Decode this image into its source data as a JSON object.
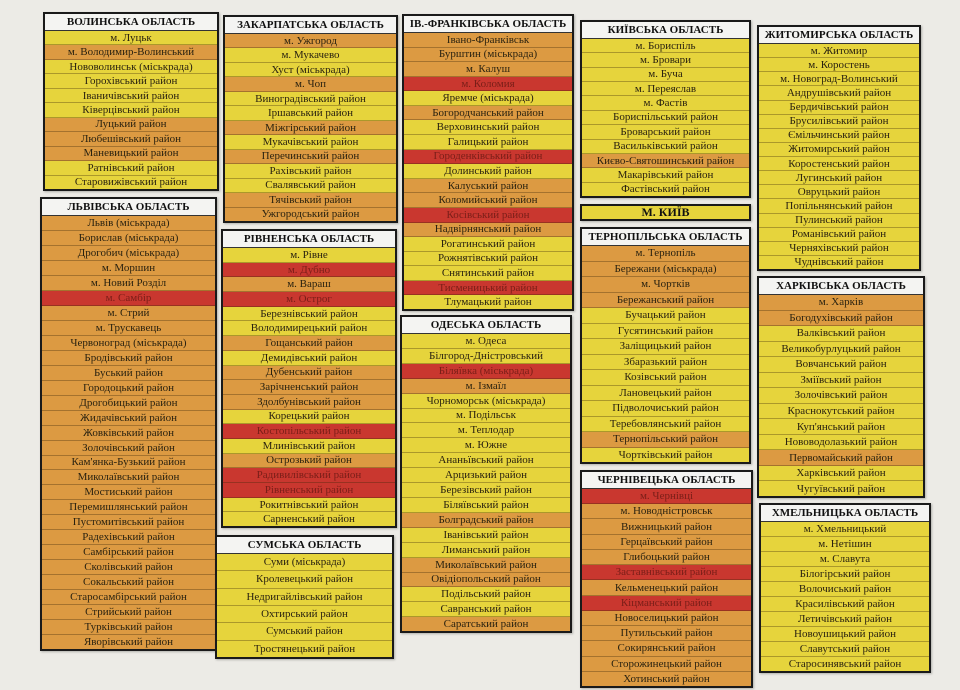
{
  "colors": {
    "yellow": "#e6d43c",
    "orange": "#dc9a42",
    "red": "#c9372f"
  },
  "regions": [
    {
      "title": "ВОЛИНСЬКА ОБЛАСТЬ",
      "items": [
        {
          "name": "м. Луцьк",
          "status": "yellow"
        },
        {
          "name": "м. Володимир-Волинський",
          "status": "orange"
        },
        {
          "name": "Нововолинськ (міськрада)",
          "status": "yellow"
        },
        {
          "name": "Горохівський район",
          "status": "yellow"
        },
        {
          "name": "Іваничівський район",
          "status": "yellow"
        },
        {
          "name": "Ківерцівський район",
          "status": "yellow"
        },
        {
          "name": "Луцький район",
          "status": "orange"
        },
        {
          "name": "Любешівський район",
          "status": "orange"
        },
        {
          "name": "Маневицький район",
          "status": "orange"
        },
        {
          "name": "Ратнівський район",
          "status": "yellow"
        },
        {
          "name": "Старовижівський район",
          "status": "yellow"
        }
      ]
    },
    {
      "title": "ЛЬВІВСЬКА ОБЛАСТЬ",
      "items": [
        {
          "name": "Львів (міськрада)",
          "status": "orange"
        },
        {
          "name": "Борислав (міськрада)",
          "status": "orange"
        },
        {
          "name": "Дрогобич (міськрада)",
          "status": "orange"
        },
        {
          "name": "м. Моршин",
          "status": "orange"
        },
        {
          "name": "м. Новий Розділ",
          "status": "orange"
        },
        {
          "name": "м. Самбір",
          "status": "red"
        },
        {
          "name": "м. Стрий",
          "status": "orange"
        },
        {
          "name": "м. Трускавець",
          "status": "orange"
        },
        {
          "name": "Червоноград (міськрада)",
          "status": "orange"
        },
        {
          "name": "Бродівський район",
          "status": "orange"
        },
        {
          "name": "Буський район",
          "status": "orange"
        },
        {
          "name": "Городоцький район",
          "status": "orange"
        },
        {
          "name": "Дрогобицький район",
          "status": "orange"
        },
        {
          "name": "Жидачівський район",
          "status": "orange"
        },
        {
          "name": "Жовківський район",
          "status": "orange"
        },
        {
          "name": "Золочівський район",
          "status": "orange"
        },
        {
          "name": "Кам'янка-Бузький район",
          "status": "orange"
        },
        {
          "name": "Миколаївський район",
          "status": "orange"
        },
        {
          "name": "Мостиський район",
          "status": "orange"
        },
        {
          "name": "Перемишлянський район",
          "status": "orange"
        },
        {
          "name": "Пустомитівський район",
          "status": "orange"
        },
        {
          "name": "Радехівський район",
          "status": "orange"
        },
        {
          "name": "Самбірський район",
          "status": "orange"
        },
        {
          "name": "Сколівський район",
          "status": "orange"
        },
        {
          "name": "Сокальський район",
          "status": "orange"
        },
        {
          "name": "Старосамбірський район",
          "status": "orange"
        },
        {
          "name": "Стрийський район",
          "status": "orange"
        },
        {
          "name": "Турківський район",
          "status": "orange"
        },
        {
          "name": "Яворівський район",
          "status": "orange"
        }
      ]
    },
    {
      "title": "ЗАКАРПАТСЬКА ОБЛАСТЬ",
      "items": [
        {
          "name": "м. Ужгород",
          "status": "orange"
        },
        {
          "name": "м. Мукачево",
          "status": "yellow"
        },
        {
          "name": "Хуст (міськрада)",
          "status": "yellow"
        },
        {
          "name": "м. Чоп",
          "status": "orange"
        },
        {
          "name": "Виноградівський район",
          "status": "yellow"
        },
        {
          "name": "Іршавський район",
          "status": "yellow"
        },
        {
          "name": "Міжгірський район",
          "status": "orange"
        },
        {
          "name": "Мукачівський район",
          "status": "yellow"
        },
        {
          "name": "Перечинський район",
          "status": "orange"
        },
        {
          "name": "Рахівський район",
          "status": "yellow"
        },
        {
          "name": "Свалявський район",
          "status": "yellow"
        },
        {
          "name": "Тячівський район",
          "status": "orange"
        },
        {
          "name": "Ужгородський район",
          "status": "orange"
        }
      ]
    },
    {
      "title": "РІВНЕНСЬКА ОБЛАСТЬ",
      "items": [
        {
          "name": "м. Рівне",
          "status": "yellow"
        },
        {
          "name": "м. Дубно",
          "status": "red"
        },
        {
          "name": "м. Вараш",
          "status": "orange"
        },
        {
          "name": "м. Острог",
          "status": "red"
        },
        {
          "name": "Березнівський район",
          "status": "yellow"
        },
        {
          "name": "Володимирецький район",
          "status": "yellow"
        },
        {
          "name": "Гощанський район",
          "status": "orange"
        },
        {
          "name": "Демидівський район",
          "status": "yellow"
        },
        {
          "name": "Дубенський район",
          "status": "orange"
        },
        {
          "name": "Зарічненський район",
          "status": "orange"
        },
        {
          "name": "Здолбунівський район",
          "status": "orange"
        },
        {
          "name": "Корецький район",
          "status": "yellow"
        },
        {
          "name": "Костопільський район",
          "status": "red"
        },
        {
          "name": "Млинівський район",
          "status": "yellow"
        },
        {
          "name": "Острозький район",
          "status": "orange"
        },
        {
          "name": "Радивилівський район",
          "status": "red"
        },
        {
          "name": "Рівненський район",
          "status": "red"
        },
        {
          "name": "Рокитнівський район",
          "status": "yellow"
        },
        {
          "name": "Сарненський район",
          "status": "yellow"
        }
      ]
    },
    {
      "title": "СУМСЬКА ОБЛАСТЬ",
      "items": [
        {
          "name": "Суми (міськрада)",
          "status": "yellow"
        },
        {
          "name": "Кролевецький район",
          "status": "yellow"
        },
        {
          "name": "Недригайлівський район",
          "status": "yellow"
        },
        {
          "name": "Охтирський район",
          "status": "yellow"
        },
        {
          "name": "Сумський район",
          "status": "yellow"
        },
        {
          "name": "Тростянецький район",
          "status": "yellow"
        }
      ]
    },
    {
      "title": "ІВ.-ФРАНКІВСЬКА ОБЛАСТЬ",
      "items": [
        {
          "name": "Івано-Франківськ",
          "status": "orange"
        },
        {
          "name": "Бурштин (міськрада)",
          "status": "orange"
        },
        {
          "name": "м. Калуш",
          "status": "orange"
        },
        {
          "name": "м. Коломия",
          "status": "red"
        },
        {
          "name": "Яремче (міськрада)",
          "status": "yellow"
        },
        {
          "name": "Богородчанський район",
          "status": "orange"
        },
        {
          "name": "Верховинський район",
          "status": "yellow"
        },
        {
          "name": "Галицький район",
          "status": "yellow"
        },
        {
          "name": "Городенківський район",
          "status": "red"
        },
        {
          "name": "Долинський район",
          "status": "yellow"
        },
        {
          "name": "Калуський район",
          "status": "orange"
        },
        {
          "name": "Коломийський район",
          "status": "orange"
        },
        {
          "name": "Косівський район",
          "status": "red"
        },
        {
          "name": "Надвірнянський район",
          "status": "orange"
        },
        {
          "name": "Рогатинський район",
          "status": "yellow"
        },
        {
          "name": "Рожнятівський район",
          "status": "yellow"
        },
        {
          "name": "Снятинський район",
          "status": "yellow"
        },
        {
          "name": "Тисменицький район",
          "status": "red"
        },
        {
          "name": "Тлумацький район",
          "status": "yellow"
        }
      ]
    },
    {
      "title": "ОДЕСЬКА ОБЛАСТЬ",
      "items": [
        {
          "name": "м. Одеса",
          "status": "yellow"
        },
        {
          "name": "Білгород-Дністровський",
          "status": "yellow"
        },
        {
          "name": "Біляївка (міськрада)",
          "status": "red"
        },
        {
          "name": "м. Ізмаїл",
          "status": "orange"
        },
        {
          "name": "Чорноморськ (міськрада)",
          "status": "yellow"
        },
        {
          "name": "м. Подільськ",
          "status": "yellow"
        },
        {
          "name": "м. Теплодар",
          "status": "yellow"
        },
        {
          "name": "м. Южне",
          "status": "yellow"
        },
        {
          "name": "Ананьївський район",
          "status": "yellow"
        },
        {
          "name": "Арцизький район",
          "status": "yellow"
        },
        {
          "name": "Березівський район",
          "status": "yellow"
        },
        {
          "name": "Біляївський район",
          "status": "yellow"
        },
        {
          "name": "Болградський район",
          "status": "orange"
        },
        {
          "name": "Іванівський район",
          "status": "yellow"
        },
        {
          "name": "Лиманський район",
          "status": "yellow"
        },
        {
          "name": "Миколаївський район",
          "status": "orange"
        },
        {
          "name": "Овідіопольський район",
          "status": "orange"
        },
        {
          "name": "Подільський район",
          "status": "yellow"
        },
        {
          "name": "Савранський район",
          "status": "yellow"
        },
        {
          "name": "Саратський район",
          "status": "orange"
        }
      ]
    },
    {
      "title": "КИЇВСЬКА ОБЛАСТЬ",
      "items": [
        {
          "name": "м. Бориспіль",
          "status": "yellow"
        },
        {
          "name": "м. Бровари",
          "status": "yellow"
        },
        {
          "name": "м. Буча",
          "status": "yellow"
        },
        {
          "name": "м. Переяслав",
          "status": "yellow"
        },
        {
          "name": "м. Фастів",
          "status": "yellow"
        },
        {
          "name": "Бориспільський район",
          "status": "yellow"
        },
        {
          "name": "Броварський район",
          "status": "yellow"
        },
        {
          "name": "Васильківський район",
          "status": "yellow"
        },
        {
          "name": "Києво-Святошинський район",
          "status": "orange"
        },
        {
          "name": "Макарівський район",
          "status": "yellow"
        },
        {
          "name": "Фастівський район",
          "status": "yellow"
        }
      ]
    },
    {
      "title": "М. КИЇВ",
      "status": "yellow",
      "items": []
    },
    {
      "title": "ТЕРНОПІЛЬСЬКА ОБЛАСТЬ",
      "items": [
        {
          "name": "м. Тернопіль",
          "status": "orange"
        },
        {
          "name": "Бережани (міськрада)",
          "status": "orange"
        },
        {
          "name": "м. Чортків",
          "status": "orange"
        },
        {
          "name": "Бережанський район",
          "status": "orange"
        },
        {
          "name": "Бучацький район",
          "status": "yellow"
        },
        {
          "name": "Гусятинський район",
          "status": "yellow"
        },
        {
          "name": "Заліщицький район",
          "status": "yellow"
        },
        {
          "name": "Збаразький район",
          "status": "yellow"
        },
        {
          "name": "Козівський район",
          "status": "yellow"
        },
        {
          "name": "Лановецький район",
          "status": "yellow"
        },
        {
          "name": "Підволочиський район",
          "status": "yellow"
        },
        {
          "name": "Теребовлянський район",
          "status": "yellow"
        },
        {
          "name": "Тернопільський район",
          "status": "orange"
        },
        {
          "name": "Чортківський район",
          "status": "yellow"
        }
      ]
    },
    {
      "title": "ЧЕРНІВЕЦЬКА ОБЛАСТЬ",
      "items": [
        {
          "name": "м. Чернівці",
          "status": "red"
        },
        {
          "name": "м. Новодністровськ",
          "status": "orange"
        },
        {
          "name": "Вижницький район",
          "status": "orange"
        },
        {
          "name": "Герцаївський район",
          "status": "orange"
        },
        {
          "name": "Глибоцький район",
          "status": "orange"
        },
        {
          "name": "Заставнівський район",
          "status": "red"
        },
        {
          "name": "Кельменецький район",
          "status": "orange"
        },
        {
          "name": "Кіцманський район",
          "status": "red"
        },
        {
          "name": "Новоселицький район",
          "status": "orange"
        },
        {
          "name": "Путильський район",
          "status": "orange"
        },
        {
          "name": "Сокирянський район",
          "status": "orange"
        },
        {
          "name": "Сторожинецький район",
          "status": "orange"
        },
        {
          "name": "Хотинський район",
          "status": "orange"
        }
      ]
    },
    {
      "title": "ЖИТОМИРСЬКА ОБЛАСТЬ",
      "items": [
        {
          "name": "м. Житомир",
          "status": "yellow"
        },
        {
          "name": "м. Коростень",
          "status": "yellow"
        },
        {
          "name": "м. Новоград-Волинський",
          "status": "yellow"
        },
        {
          "name": "Андрушівський район",
          "status": "yellow"
        },
        {
          "name": "Бердичівський район",
          "status": "yellow"
        },
        {
          "name": "Брусилівський район",
          "status": "yellow"
        },
        {
          "name": "Ємільчинський район",
          "status": "yellow"
        },
        {
          "name": "Житомирський район",
          "status": "yellow"
        },
        {
          "name": "Коростенський район",
          "status": "yellow"
        },
        {
          "name": "Лугинський район",
          "status": "yellow"
        },
        {
          "name": "Овруцький район",
          "status": "yellow"
        },
        {
          "name": "Попільнянський район",
          "status": "yellow"
        },
        {
          "name": "Пулинський район",
          "status": "yellow"
        },
        {
          "name": "Романівський район",
          "status": "yellow"
        },
        {
          "name": "Черняхівський район",
          "status": "yellow"
        },
        {
          "name": "Чуднівський район",
          "status": "yellow"
        }
      ]
    },
    {
      "title": "ХАРКІВСЬКА ОБЛАСТЬ",
      "items": [
        {
          "name": "м. Харків",
          "status": "orange"
        },
        {
          "name": "Богодухівський район",
          "status": "orange"
        },
        {
          "name": "Валківський район",
          "status": "yellow"
        },
        {
          "name": "Великобурлуцький район",
          "status": "yellow"
        },
        {
          "name": "Вовчанський район",
          "status": "yellow"
        },
        {
          "name": "Зміївський район",
          "status": "yellow"
        },
        {
          "name": "Золочівський район",
          "status": "yellow"
        },
        {
          "name": "Краснокутський район",
          "status": "yellow"
        },
        {
          "name": "Куп'янський район",
          "status": "yellow"
        },
        {
          "name": "Нововодолазький район",
          "status": "yellow"
        },
        {
          "name": "Первомайський район",
          "status": "orange"
        },
        {
          "name": "Харківський район",
          "status": "yellow"
        },
        {
          "name": "Чугуївський район",
          "status": "yellow"
        }
      ]
    },
    {
      "title": "ХМЕЛЬНИЦЬКА ОБЛАСТЬ",
      "items": [
        {
          "name": "м. Хмельницький",
          "status": "yellow"
        },
        {
          "name": "м. Нетішин",
          "status": "yellow"
        },
        {
          "name": "м. Славута",
          "status": "yellow"
        },
        {
          "name": "Білогірський район",
          "status": "yellow"
        },
        {
          "name": "Волочиський район",
          "status": "yellow"
        },
        {
          "name": "Красилівський район",
          "status": "yellow"
        },
        {
          "name": "Летичівський район",
          "status": "yellow"
        },
        {
          "name": "Новоушицький район",
          "status": "yellow"
        },
        {
          "name": "Славутський район",
          "status": "yellow"
        },
        {
          "name": "Старосинявський район",
          "status": "yellow"
        }
      ]
    }
  ]
}
